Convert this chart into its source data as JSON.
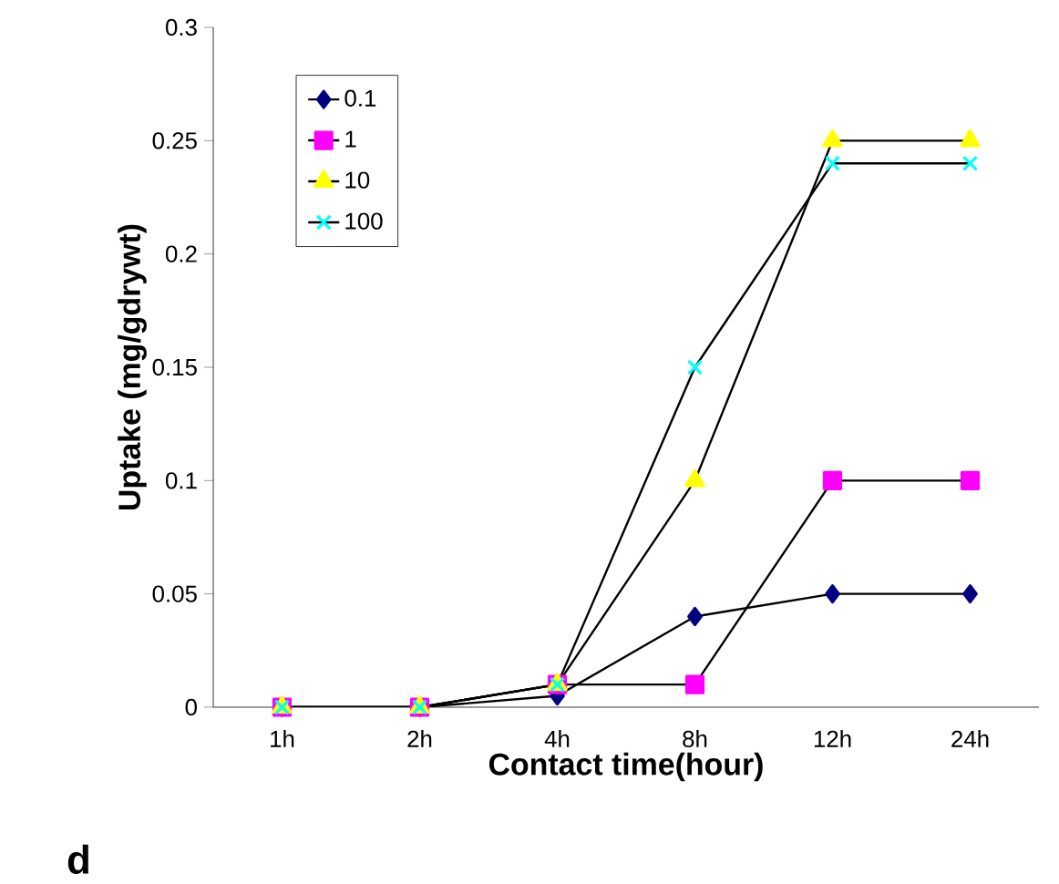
{
  "chart_data": {
    "type": "line",
    "xlabel": "Contact time(hour)",
    "ylabel": "Uptake (mg/gdrywt)",
    "categories": [
      "1h",
      "2h",
      "4h",
      "8h",
      "12h",
      "24h"
    ],
    "series": [
      {
        "name": "0.1",
        "color": "#000080",
        "marker": "diamond",
        "values": [
          0,
          0,
          0.005,
          0.04,
          0.05,
          0.05
        ]
      },
      {
        "name": "1",
        "color": "#ff00ff",
        "marker": "square",
        "values": [
          0,
          0,
          0.01,
          0.01,
          0.1,
          0.1
        ]
      },
      {
        "name": "10",
        "color": "#ffff00",
        "marker": "triangle",
        "values": [
          0,
          0,
          0.01,
          0.1,
          0.25,
          0.25
        ]
      },
      {
        "name": "100",
        "color": "#00ffff",
        "marker": "cross",
        "values": [
          0,
          0,
          0.01,
          0.15,
          0.24,
          0.24
        ]
      }
    ],
    "ylim": [
      0,
      0.3
    ],
    "yticks": [
      0,
      0.05,
      0.1,
      0.15,
      0.2,
      0.25,
      0.3
    ],
    "grid": false,
    "legend": "top left",
    "line_style": "solid",
    "annotations": [
      "d"
    ]
  }
}
